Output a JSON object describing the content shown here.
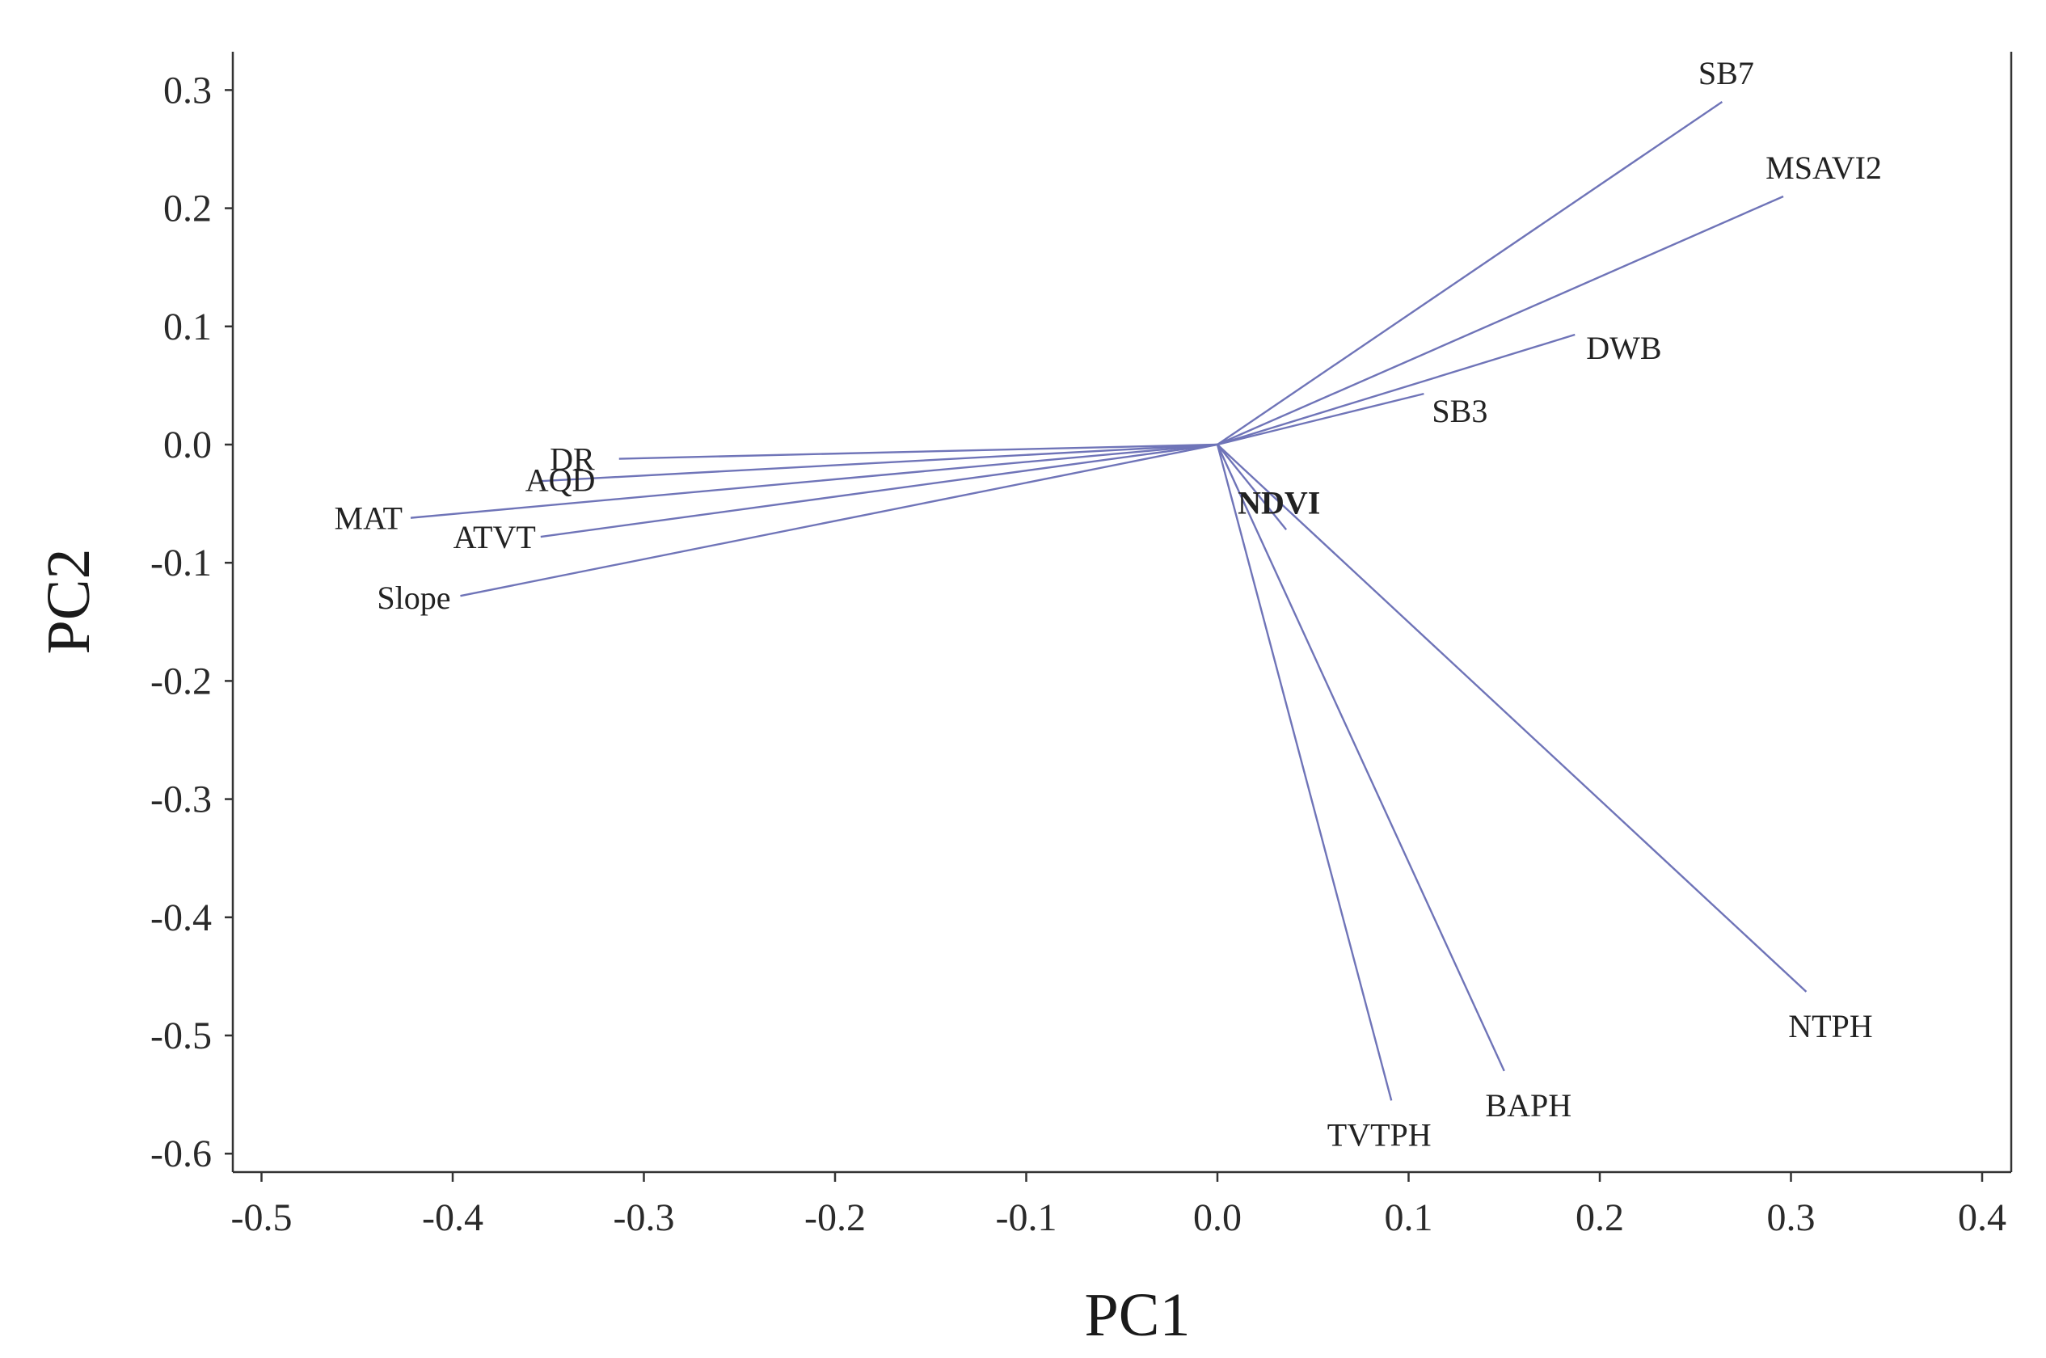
{
  "colors": {
    "vector": "#6f74b8",
    "axis": "#333333"
  },
  "chart_data": {
    "type": "scatter",
    "subtype": "pca-loading-biplot",
    "title": "",
    "xlabel": "PC1",
    "ylabel": "PC2",
    "xlim": [
      -0.5,
      0.4
    ],
    "ylim": [
      -0.6,
      0.3
    ],
    "xticks": [
      -0.5,
      -0.4,
      -0.3,
      -0.2,
      -0.1,
      0.0,
      0.1,
      0.2,
      0.3,
      0.4
    ],
    "yticks": [
      0.3,
      0.2,
      0.1,
      0.0,
      -0.1,
      -0.2,
      -0.3,
      -0.4,
      -0.5,
      -0.6
    ],
    "xtick_labels": [
      "-0.5",
      "-0.4",
      "-0.3",
      "-0.2",
      "-0.1",
      "0.0",
      "0.1",
      "0.2",
      "0.3",
      "0.4"
    ],
    "ytick_labels": [
      "0.3",
      "0.2",
      "0.1",
      "0.0",
      "-0.1",
      "-0.2",
      "-0.3",
      "-0.4",
      "-0.5",
      "-0.6"
    ],
    "grid": false,
    "origin": [
      0.0,
      0.0
    ],
    "vectors": [
      {
        "name": "SB7",
        "x": 0.264,
        "y": 0.29,
        "bold": false
      },
      {
        "name": "MSAVI2",
        "x": 0.296,
        "y": 0.21,
        "bold": false
      },
      {
        "name": "DWB",
        "x": 0.187,
        "y": 0.093,
        "bold": false
      },
      {
        "name": "SB3",
        "x": 0.108,
        "y": 0.043,
        "bold": false
      },
      {
        "name": "NDVI",
        "x": 0.036,
        "y": -0.072,
        "bold": true
      },
      {
        "name": "DR",
        "x": -0.313,
        "y": -0.012,
        "bold": false
      },
      {
        "name": "AQD",
        "x": -0.355,
        "y": -0.031,
        "bold": false
      },
      {
        "name": "MAT",
        "x": -0.422,
        "y": -0.062,
        "bold": false
      },
      {
        "name": "ATVT",
        "x": -0.354,
        "y": -0.078,
        "bold": false
      },
      {
        "name": "Slope",
        "x": -0.396,
        "y": -0.128,
        "bold": false
      },
      {
        "name": "TVTPH",
        "x": 0.091,
        "y": -0.555,
        "bold": false
      },
      {
        "name": "BAPH",
        "x": 0.15,
        "y": -0.53,
        "bold": false
      },
      {
        "name": "NTPH",
        "x": 0.308,
        "y": -0.463,
        "bold": false
      }
    ]
  }
}
